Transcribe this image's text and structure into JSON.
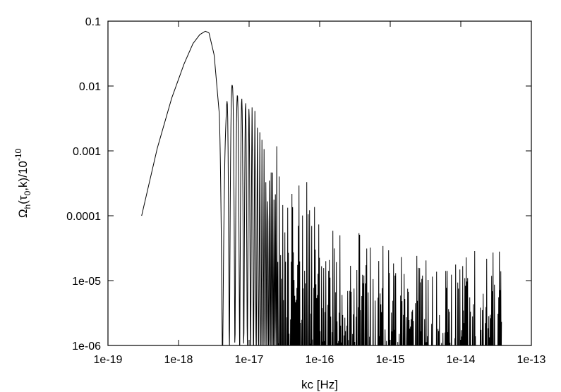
{
  "chart_data": {
    "type": "line",
    "title": "",
    "xlabel": "kc [Hz]",
    "ylabel": {
      "omega": "Ω",
      "sub_h": "h",
      "mid": "(τ",
      "sub_0": "0",
      "rest": ",k)/10",
      "exp": "-10"
    },
    "x_scale": "log",
    "y_scale": "log",
    "xlim": [
      1e-19,
      1e-13
    ],
    "ylim": [
      1e-06,
      0.1
    ],
    "x_ticks": [
      "1e-19",
      "1e-18",
      "1e-17",
      "1e-16",
      "1e-15",
      "1e-14",
      "1e-13"
    ],
    "y_ticks": [
      "1e-06",
      "1e-05",
      "0.0001",
      "0.001",
      "0.01",
      "0.1"
    ],
    "grid": false,
    "legend": "none",
    "line_color": "#000000",
    "series": [
      {
        "envelope_x": [
          3e-19,
          5e-19,
          8e-19,
          1.2e-18,
          1.6e-18,
          2e-18,
          2.4e-18,
          2.7e-18,
          3.2e-18,
          3.8e-18,
          4.2e-18,
          5e-18,
          6.5e-18,
          1e-17,
          1.5e-17,
          2e-17,
          3e-17,
          5e-17,
          1e-16,
          2e-16,
          3e-16,
          5e-16,
          1e-15,
          2e-15,
          5e-15,
          1e-14,
          2e-14,
          3.8e-14
        ],
        "envelope_y": [
          0.0001,
          0.0011,
          0.0065,
          0.022,
          0.045,
          0.062,
          0.07,
          0.066,
          0.03,
          0.0035,
          0.00014,
          0.015,
          0.0075,
          0.0053,
          0.0035,
          0.0025,
          0.0015,
          0.00075,
          0.00027,
          0.00011,
          7.5e-05,
          5.2e-05,
          3.8e-05,
          3.3e-05,
          3.15e-05,
          3.1e-05,
          3.05e-05,
          3.05e-05
        ],
        "minima_floor_y": 1e-06,
        "curve_start_x": 3e-19,
        "curve_end_x": 3.8e-14
      }
    ]
  }
}
